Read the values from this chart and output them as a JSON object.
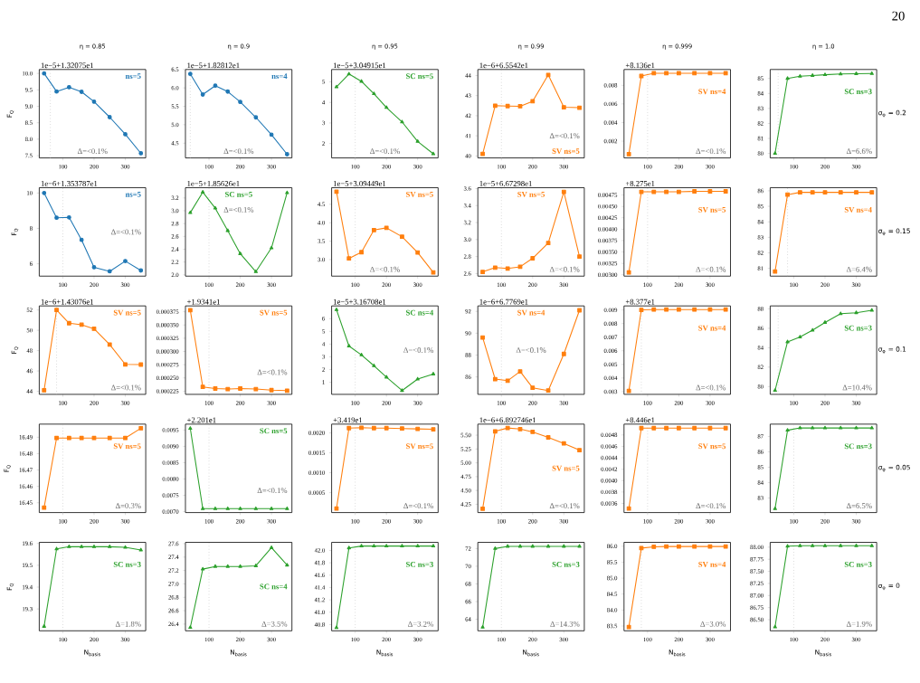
{
  "chart_data": [
    {
      "type": "line",
      "title": "η = 0.85",
      "ylabel": "F$_{Q}$",
      "x": [
        40,
        80,
        120,
        160,
        200,
        250,
        300,
        350
      ],
      "values": [
        10.0,
        9.45,
        9.58,
        9.44,
        9.14,
        8.67,
        8.15,
        7.57
      ],
      "color": "#1f77b4",
      "marker": "circle",
      "xlim": [
        24.5,
        365.5
      ],
      "xticks": [
        100,
        200,
        300
      ],
      "ylim": [
        7.43,
        10.12
      ],
      "yticks": [
        7.5,
        {
          "value": 8,
          "label": "8.0"
        },
        8.5,
        {
          "value": 9,
          "label": "9.0"
        },
        9.5,
        {
          "value": 10,
          "label": "10.0"
        }
      ],
      "ref_lines": [
        {
          "axis": "x",
          "value": 60,
          "color": "#b0b0b0",
          "line_style": "dotted"
        }
      ],
      "annotations": [
        "ns=5",
        "Δ=<0.1%",
        "1e−5+1.32075e1",
        "20"
      ]
    },
    {
      "type": "line",
      "title": "η = 0.9",
      "x": [
        40,
        80,
        120,
        160,
        200,
        250,
        300,
        350
      ],
      "values": [
        6.38,
        5.82,
        6.06,
        5.9,
        5.62,
        5.2,
        4.73,
        4.2
      ],
      "color": "#1f77b4",
      "marker": "circle",
      "xlim": [
        24.5,
        365.5
      ],
      "xticks": [
        100,
        200,
        300
      ],
      "ylim": [
        4.1,
        6.5
      ],
      "yticks": [
        4.5,
        {
          "value": 5,
          "label": "5.0"
        },
        5.5,
        {
          "value": 6,
          "label": "6.0"
        },
        6.5
      ],
      "ref_lines": [
        {
          "axis": "x",
          "value": 40,
          "color": "#b0b0b0",
          "line_style": "dotted"
        }
      ],
      "annotations": [
        "ns=4",
        "Δ=<0.1%",
        "1e−5+1.82812e1"
      ]
    },
    {
      "type": "line",
      "title": "η = 0.95",
      "x": [
        40,
        80,
        120,
        160,
        200,
        250,
        300,
        350
      ],
      "values": [
        4.75,
        5.38,
        5.02,
        4.42,
        3.75,
        3.05,
        2.1,
        1.5
      ],
      "color": "#2ca02c",
      "marker": "triangle",
      "xlim": [
        24.5,
        365.5
      ],
      "xticks": [
        100,
        200,
        300
      ],
      "ylim": [
        1.3,
        5.6
      ],
      "yticks": [
        2,
        3,
        4,
        5
      ],
      "ref_lines": [
        {
          "axis": "x",
          "value": 100,
          "color": "#b0b0b0",
          "line_style": "dotted"
        }
      ],
      "annotations": [
        "SC ns=5",
        "Δ=<0.1%",
        "1e−5+3.04915e1"
      ]
    },
    {
      "type": "line",
      "title": "η = 0.99",
      "x": [
        40,
        80,
        120,
        160,
        200,
        250,
        300,
        350
      ],
      "values": [
        40.1,
        42.5,
        42.48,
        42.47,
        42.72,
        44.03,
        42.42,
        42.4
      ],
      "color": "#ff7f0e",
      "marker": "square",
      "xlim": [
        24.5,
        365.5
      ],
      "xticks": [
        100,
        200,
        300
      ],
      "ylim": [
        39.9,
        44.3
      ],
      "yticks": [
        40,
        41,
        42,
        43,
        44
      ],
      "ref_lines": [
        {
          "axis": "x",
          "value": 100,
          "color": "#b0b0b0",
          "line_style": "dotted"
        }
      ],
      "annotations": [
        "SV ns=5",
        "Δ=<0.1%",
        "1e−6+6.5542e1"
      ]
    },
    {
      "type": "line",
      "title": "η = 0.999",
      "x": [
        40,
        80,
        120,
        160,
        200,
        250,
        300,
        350
      ],
      "values": [
        0.0006,
        0.009,
        0.0093,
        0.0093,
        0.0093,
        0.0093,
        0.0093,
        0.0093
      ],
      "color": "#ff7f0e",
      "marker": "square",
      "xlim": [
        24.5,
        365.5
      ],
      "xticks": [
        100,
        200,
        300
      ],
      "ylim": [
        0.0002,
        0.0097
      ],
      "yticks": [
        0.002,
        0.004,
        0.006,
        0.008
      ],
      "ref_lines": [
        {
          "axis": "x",
          "value": 100,
          "color": "#b0b0b0",
          "line_style": "dotted"
        }
      ],
      "annotations": [
        "SV ns=4",
        "Δ=<0.1%",
        "+8.136e1"
      ]
    },
    {
      "type": "line",
      "title": "η = 1.0",
      "x": [
        40,
        80,
        120,
        160,
        200,
        250,
        300,
        350
      ],
      "values": [
        80.0,
        85.0,
        85.15,
        85.2,
        85.25,
        85.3,
        85.32,
        85.33
      ],
      "color": "#2ca02c",
      "marker": "triangle",
      "xlim": [
        24.5,
        365.5
      ],
      "xticks": [
        100,
        200,
        300
      ],
      "ylim": [
        79.7,
        85.6
      ],
      "yticks": [
        80,
        81,
        82,
        83,
        84,
        85
      ],
      "ref_lines": [
        {
          "axis": "x",
          "value": 50,
          "color": "#b0b0b0",
          "line_style": "dotted"
        }
      ],
      "annotations": [
        "SC ns=3",
        "Δ=6.6%",
        "σ$_{φ}$ = 0.2"
      ]
    },
    {
      "type": "line",
      "ylabel": "F$_{Q}$",
      "x": [
        40,
        80,
        120,
        160,
        200,
        250,
        300,
        350
      ],
      "values": [
        10.0,
        8.6,
        8.62,
        7.35,
        5.8,
        5.57,
        6.15,
        5.62
      ],
      "color": "#1f77b4",
      "marker": "circle",
      "xlim": [
        24.5,
        365.5
      ],
      "xticks": [
        100,
        200,
        300
      ],
      "ylim": [
        5.3,
        10.3
      ],
      "yticks": [
        6,
        8,
        10
      ],
      "ref_lines": [
        {
          "axis": "x",
          "value": 100,
          "color": "#b0b0b0",
          "line_style": "dotted"
        }
      ],
      "annotations": [
        "ns=5",
        "Δ=<0.1%",
        "1e−6+1.353787e1"
      ]
    },
    {
      "type": "line",
      "x": [
        40,
        80,
        120,
        160,
        200,
        250,
        300,
        350
      ],
      "values": [
        2.97,
        3.29,
        3.04,
        2.69,
        2.33,
        2.05,
        2.42,
        3.28
      ],
      "color": "#2ca02c",
      "marker": "triangle",
      "xlim": [
        24.5,
        365.5
      ],
      "xticks": [
        100,
        200,
        300
      ],
      "ylim": [
        1.98,
        3.36
      ],
      "yticks": [
        {
          "value": 2,
          "label": "2.0"
        },
        2.2,
        2.4,
        2.6,
        2.8,
        {
          "value": 3,
          "label": "3.0"
        },
        3.2
      ],
      "ref_lines": [
        {
          "axis": "x",
          "value": 100,
          "color": "#b0b0b0",
          "line_style": "dotted"
        }
      ],
      "annotations": [
        "SC ns=5",
        "Δ=<0.1%",
        "1e−5+1.85626e1"
      ]
    },
    {
      "type": "line",
      "x": [
        40,
        80,
        120,
        160,
        200,
        250,
        300,
        350
      ],
      "values": [
        4.84,
        3.03,
        3.2,
        3.8,
        3.86,
        3.62,
        3.19,
        2.65
      ],
      "color": "#ff7f0e",
      "marker": "square",
      "xlim": [
        24.5,
        365.5
      ],
      "xticks": [
        100,
        200,
        300
      ],
      "ylim": [
        2.55,
        4.95
      ],
      "yticks": [
        {
          "value": 3,
          "label": "3.0"
        },
        3.5,
        {
          "value": 4,
          "label": "4.0"
        },
        4.5
      ],
      "ref_lines": [
        {
          "axis": "x",
          "value": 100,
          "color": "#b0b0b0",
          "line_style": "dotted"
        }
      ],
      "annotations": [
        "SV ns=5",
        "Δ=<0.1%",
        "1e−5+3.09449e1"
      ]
    },
    {
      "type": "line",
      "x": [
        40,
        80,
        120,
        160,
        200,
        250,
        300,
        350
      ],
      "values": [
        2.62,
        2.67,
        2.66,
        2.68,
        2.78,
        2.96,
        3.56,
        2.8
      ],
      "color": "#ff7f0e",
      "marker": "square",
      "xlim": [
        24.5,
        365.5
      ],
      "xticks": [
        100,
        200,
        300
      ],
      "ylim": [
        2.57,
        3.61
      ],
      "yticks": [
        2.6,
        2.8,
        {
          "value": 3,
          "label": "3.0"
        },
        3.2,
        3.4,
        3.6
      ],
      "ref_lines": [
        {
          "axis": "x",
          "value": 100,
          "color": "#b0b0b0",
          "line_style": "dotted"
        }
      ],
      "annotations": [
        "SV ns=5",
        "Δ=<0.1%",
        "1e−5+6.67298e1"
      ]
    },
    {
      "type": "line",
      "x": [
        40,
        80,
        120,
        160,
        200,
        250,
        300,
        350
      ],
      "values": [
        0.00305,
        0.00482,
        0.00482,
        0.00482,
        0.00482,
        0.00483,
        0.00483,
        0.00483
      ],
      "color": "#ff7f0e",
      "marker": "square",
      "xlim": [
        24.5,
        365.5
      ],
      "xticks": [
        100,
        200,
        300
      ],
      "ylim": [
        0.00297,
        0.00491
      ],
      "yticks": [
        {
          "value": 0.003,
          "label": "0.00300"
        },
        {
          "value": 0.00325,
          "label": "0.00325"
        },
        {
          "value": 0.0035,
          "label": "0.00350"
        },
        {
          "value": 0.00375,
          "label": "0.00375"
        },
        {
          "value": 0.004,
          "label": "0.00400"
        },
        {
          "value": 0.00425,
          "label": "0.00425"
        },
        {
          "value": 0.0045,
          "label": "0.00450"
        },
        {
          "value": 0.00475,
          "label": "0.00475"
        }
      ],
      "ref_lines": [
        {
          "axis": "x",
          "value": 100,
          "color": "#b0b0b0",
          "line_style": "dotted"
        }
      ],
      "annotations": [
        "SV ns=5",
        "Δ=<0.1%",
        "+8.275e1"
      ]
    },
    {
      "type": "line",
      "x": [
        40,
        80,
        120,
        160,
        200,
        250,
        300,
        350
      ],
      "values": [
        80.8,
        85.75,
        85.9,
        85.9,
        85.9,
        85.9,
        85.9,
        85.9
      ],
      "color": "#ff7f0e",
      "marker": "square",
      "xlim": [
        24.5,
        365.5
      ],
      "xticks": [
        100,
        200,
        300
      ],
      "ylim": [
        80.5,
        86.2
      ],
      "yticks": [
        81,
        82,
        83,
        84,
        85,
        86
      ],
      "ref_lines": [
        {
          "axis": "x",
          "value": 80,
          "color": "#b0b0b0",
          "line_style": "dotted"
        }
      ],
      "annotations": [
        "SV ns=4",
        "Δ=6.4%",
        "σ$_{φ}$ = 0.15"
      ]
    },
    {
      "type": "line",
      "ylabel": "F$_{Q}$",
      "x": [
        40,
        80,
        120,
        160,
        200,
        250,
        300,
        350
      ],
      "values": [
        44.1,
        52.0,
        50.7,
        50.55,
        50.15,
        48.6,
        46.65,
        46.63
      ],
      "color": "#ff7f0e",
      "marker": "square",
      "xlim": [
        24.5,
        365.5
      ],
      "xticks": [
        100,
        200,
        300
      ],
      "ylim": [
        43.7,
        52.4
      ],
      "yticks": [
        44,
        46,
        48,
        50,
        52
      ],
      "ref_lines": [
        {
          "axis": "x",
          "value": 80,
          "color": "#b0b0b0",
          "line_style": "dotted"
        }
      ],
      "annotations": [
        "SV ns=5",
        "Δ=<0.1%",
        "1e−6+1.43076e1"
      ]
    },
    {
      "type": "line",
      "x": [
        40,
        80,
        120,
        160,
        200,
        250,
        300,
        350
      ],
      "values": [
        0.000378,
        0.000233,
        0.00023,
        0.000229,
        0.00023,
        0.000229,
        0.000227,
        0.000226
      ],
      "color": "#ff7f0e",
      "marker": "square",
      "xlim": [
        24.5,
        365.5
      ],
      "xticks": [
        100,
        200,
        300
      ],
      "ylim": [
        0.000219,
        0.000386
      ],
      "yticks": [
        {
          "value": 0.000225,
          "label": "0.000225"
        },
        {
          "value": 0.00025,
          "label": "0.000250"
        },
        {
          "value": 0.000275,
          "label": "0.000275"
        },
        {
          "value": 0.0003,
          "label": "0.000300"
        },
        {
          "value": 0.000325,
          "label": "0.000325"
        },
        {
          "value": 0.00035,
          "label": "0.000350"
        },
        {
          "value": 0.000375,
          "label": "0.000375"
        }
      ],
      "ref_lines": [
        {
          "axis": "x",
          "value": 100,
          "color": "#b0b0b0",
          "line_style": "dotted"
        }
      ],
      "annotations": [
        "SV ns=5",
        "Δ=<0.1%",
        "+1.9341e1"
      ]
    },
    {
      "type": "line",
      "x": [
        40,
        80,
        120,
        160,
        200,
        250,
        300,
        350
      ],
      "values": [
        6.7,
        3.85,
        3.15,
        2.3,
        1.4,
        0.35,
        1.25,
        1.65
      ],
      "color": "#2ca02c",
      "marker": "triangle",
      "xlim": [
        24.5,
        365.5
      ],
      "xticks": [
        100,
        200,
        300
      ],
      "ylim": [
        0.05,
        7.0
      ],
      "yticks": [
        1,
        2,
        3,
        4,
        5,
        6
      ],
      "ref_lines": [
        {
          "axis": "x",
          "value": 100,
          "color": "#b0b0b0",
          "line_style": "dotted"
        }
      ],
      "annotations": [
        "SC ns=4",
        "Δ=<0.1%",
        "1e−5+3.16708e1"
      ]
    },
    {
      "type": "line",
      "x": [
        40,
        80,
        120,
        160,
        200,
        250,
        300,
        350
      ],
      "values": [
        89.6,
        85.8,
        85.65,
        86.5,
        85.0,
        84.75,
        88.1,
        92.1
      ],
      "color": "#ff7f0e",
      "marker": "square",
      "xlim": [
        24.5,
        365.5
      ],
      "xticks": [
        100,
        200,
        300
      ],
      "ylim": [
        84.4,
        92.5
      ],
      "yticks": [
        86,
        88,
        90,
        92
      ],
      "ref_lines": [
        {
          "axis": "x",
          "value": 100,
          "color": "#b0b0b0",
          "line_style": "dotted"
        }
      ],
      "annotations": [
        "SV ns=4",
        "Δ=<0.1%",
        "1e−6+6.7769e1"
      ]
    },
    {
      "type": "line",
      "x": [
        40,
        80,
        120,
        160,
        200,
        250,
        300,
        350
      ],
      "values": [
        0.00305,
        0.00901,
        0.00903,
        0.00903,
        0.00903,
        0.00903,
        0.00903,
        0.00903
      ],
      "color": "#ff7f0e",
      "marker": "square",
      "xlim": [
        24.5,
        365.5
      ],
      "xticks": [
        100,
        200,
        300
      ],
      "ylim": [
        0.0028,
        0.0093
      ],
      "yticks": [
        0.003,
        0.004,
        0.005,
        0.006,
        0.007,
        0.008,
        0.009
      ],
      "ref_lines": [
        {
          "axis": "x",
          "value": 80,
          "color": "#b0b0b0",
          "line_style": "dotted"
        }
      ],
      "annotations": [
        "SV ns=4",
        "Δ=<0.1%",
        "+8.377e1"
      ]
    },
    {
      "type": "line",
      "x": [
        40,
        80,
        120,
        160,
        200,
        250,
        300,
        350
      ],
      "values": [
        79.6,
        84.6,
        85.1,
        85.8,
        86.6,
        87.5,
        87.6,
        87.85
      ],
      "color": "#2ca02c",
      "marker": "triangle",
      "xlim": [
        24.5,
        365.5
      ],
      "xticks": [
        100,
        200,
        300
      ],
      "ylim": [
        79.2,
        88.3
      ],
      "yticks": [
        80,
        82,
        84,
        86,
        88
      ],
      "ref_lines": [
        {
          "axis": "x",
          "value": 50,
          "color": "#b0b0b0",
          "line_style": "dotted"
        }
      ],
      "annotations": [
        "SC ns=3",
        "Δ=10.4%",
        "σ$_{φ}$ = 0.1"
      ]
    },
    {
      "type": "line",
      "ylabel": "F$_{Q}$",
      "x": [
        40,
        80,
        120,
        160,
        200,
        250,
        300,
        350
      ],
      "values": [
        16.447,
        16.4895,
        16.4895,
        16.4895,
        16.4895,
        16.4895,
        16.4895,
        16.4955
      ],
      "color": "#ff7f0e",
      "marker": "square",
      "xlim": [
        24.5,
        365.5
      ],
      "xticks": [
        100,
        200,
        300
      ],
      "ylim": [
        16.444,
        16.498
      ],
      "yticks": [
        16.45,
        16.46,
        16.47,
        16.48,
        16.49
      ],
      "ref_lines": [
        {
          "axis": "x",
          "value": 100,
          "color": "#b0b0b0",
          "line_style": "dotted"
        }
      ],
      "annotations": [
        "SV ns=5",
        "Δ=0.3%"
      ]
    },
    {
      "type": "line",
      "x": [
        40,
        80,
        120,
        160,
        200,
        250,
        300,
        350
      ],
      "values": [
        0.00955,
        0.00709,
        0.00709,
        0.00709,
        0.00709,
        0.00709,
        0.00709,
        0.00709
      ],
      "color": "#2ca02c",
      "marker": "triangle",
      "xlim": [
        24.5,
        365.5
      ],
      "xticks": [
        100,
        200,
        300
      ],
      "ylim": [
        0.00697,
        0.00968
      ],
      "yticks": [
        {
          "value": 0.007,
          "label": "0.0070"
        },
        {
          "value": 0.0075,
          "label": "0.0075"
        },
        {
          "value": 0.008,
          "label": "0.0080"
        },
        {
          "value": 0.0085,
          "label": "0.0085"
        },
        {
          "value": 0.009,
          "label": "0.0090"
        },
        {
          "value": 0.0095,
          "label": "0.0095"
        }
      ],
      "ref_lines": [
        {
          "axis": "x",
          "value": 100,
          "color": "#b0b0b0",
          "line_style": "dotted"
        }
      ],
      "annotations": [
        "SC ns=5",
        "Δ=<0.1%",
        "+2.201e1"
      ]
    },
    {
      "type": "line",
      "x": [
        40,
        80,
        120,
        160,
        200,
        250,
        300,
        350
      ],
      "values": [
        0.0001,
        0.00212,
        0.00213,
        0.00212,
        0.00212,
        0.00211,
        0.0021,
        0.00209
      ],
      "color": "#ff7f0e",
      "marker": "square",
      "xlim": [
        24.5,
        365.5
      ],
      "xticks": [
        100,
        200,
        300
      ],
      "ylim": [
        0.0,
        0.00222
      ],
      "yticks": [
        {
          "value": 0.0005,
          "label": "0.0005"
        },
        {
          "value": 0.001,
          "label": "0.0010"
        },
        {
          "value": 0.0015,
          "label": "0.0015"
        },
        {
          "value": 0.002,
          "label": "0.0020"
        }
      ],
      "ref_lines": [
        {
          "axis": "x",
          "value": 100,
          "color": "#b0b0b0",
          "line_style": "dotted"
        }
      ],
      "annotations": [
        "SV ns=5",
        "Δ=<0.1%",
        "+3.419e1"
      ]
    },
    {
      "type": "line",
      "x": [
        40,
        80,
        120,
        160,
        200,
        250,
        300,
        350
      ],
      "values": [
        4.17,
        5.57,
        5.63,
        5.61,
        5.56,
        5.46,
        5.35,
        5.23
      ],
      "color": "#ff7f0e",
      "marker": "square",
      "xlim": [
        24.5,
        365.5
      ],
      "xticks": [
        100,
        200,
        300
      ],
      "ylim": [
        4.1,
        5.7
      ],
      "yticks": [
        {
          "value": 4.25,
          "label": "4.25"
        },
        {
          "value": 4.5,
          "label": "4.50"
        },
        {
          "value": 4.75,
          "label": "4.75"
        },
        {
          "value": 5.0,
          "label": "5.00"
        },
        {
          "value": 5.25,
          "label": "5.25"
        },
        {
          "value": 5.5,
          "label": "5.50"
        }
      ],
      "ref_lines": [
        {
          "axis": "x",
          "value": 100,
          "color": "#b0b0b0",
          "line_style": "dotted"
        }
      ],
      "annotations": [
        "SV ns=5",
        "Δ=<0.1%",
        "1e−6+6.892746e1"
      ]
    },
    {
      "type": "line",
      "x": [
        40,
        80,
        120,
        160,
        200,
        250,
        300,
        350
      ],
      "values": [
        0.00351,
        0.00492,
        0.00492,
        0.00492,
        0.00492,
        0.00492,
        0.00492,
        0.00492
      ],
      "color": "#ff7f0e",
      "marker": "square",
      "xlim": [
        24.5,
        365.5
      ],
      "xticks": [
        100,
        200,
        300
      ],
      "ylim": [
        0.00344,
        0.00499
      ],
      "yticks": [
        {
          "value": 0.0036,
          "label": "0.0036"
        },
        {
          "value": 0.0038,
          "label": "0.0038"
        },
        {
          "value": 0.004,
          "label": "0.0040"
        },
        {
          "value": 0.0042,
          "label": "0.0042"
        },
        {
          "value": 0.0044,
          "label": "0.0044"
        },
        {
          "value": 0.0046,
          "label": "0.0046"
        },
        {
          "value": 0.0048,
          "label": "0.0048"
        }
      ],
      "ref_lines": [
        {
          "axis": "x",
          "value": 100,
          "color": "#b0b0b0",
          "line_style": "dotted"
        }
      ],
      "annotations": [
        "SV ns=5",
        "Δ=<0.1%",
        "+8.446e1"
      ]
    },
    {
      "type": "line",
      "x": [
        40,
        80,
        120,
        160,
        200,
        250,
        300,
        350
      ],
      "values": [
        82.3,
        87.4,
        87.55,
        87.55,
        87.55,
        87.55,
        87.55,
        87.55
      ],
      "color": "#2ca02c",
      "marker": "triangle",
      "xlim": [
        24.5,
        365.5
      ],
      "xticks": [
        100,
        200,
        300
      ],
      "ylim": [
        82.05,
        87.8
      ],
      "yticks": [
        83,
        84,
        85,
        86,
        87
      ],
      "ref_lines": [
        {
          "axis": "x",
          "value": 100,
          "color": "#b0b0b0",
          "line_style": "dotted"
        }
      ],
      "annotations": [
        "SC ns=3",
        "Δ=6.5%",
        "σ$_{φ}$ = 0.05"
      ]
    },
    {
      "type": "line",
      "ylabel": "F$_{Q}$",
      "xlabel": "N$_{basis}$",
      "x": [
        40,
        80,
        120,
        160,
        200,
        250,
        300,
        350
      ],
      "values": [
        19.22,
        19.575,
        19.585,
        19.585,
        19.585,
        19.585,
        19.582,
        19.57
      ],
      "color": "#2ca02c",
      "marker": "triangle",
      "xlim": [
        24.5,
        365.5
      ],
      "xticks": [
        100,
        200,
        300
      ],
      "ylim": [
        19.2,
        19.605
      ],
      "yticks": [
        19.3,
        19.4,
        19.5,
        19.6
      ],
      "ref_lines": [
        {
          "axis": "x",
          "value": 100,
          "color": "#b0b0b0",
          "line_style": "dotted"
        }
      ],
      "annotations": [
        "SC ns=3",
        "Δ=1.8%"
      ]
    },
    {
      "type": "line",
      "xlabel": "N$_{basis}$",
      "x": [
        40,
        80,
        120,
        160,
        200,
        250,
        300,
        350
      ],
      "values": [
        26.35,
        27.22,
        27.26,
        27.26,
        27.26,
        27.27,
        27.54,
        27.28
      ],
      "color": "#2ca02c",
      "marker": "triangle",
      "xlim": [
        24.5,
        365.5
      ],
      "xticks": [
        100,
        200,
        300
      ],
      "ylim": [
        26.3,
        27.62
      ],
      "yticks": [
        26.4,
        26.6,
        26.8,
        {
          "value": 27,
          "label": "27.0"
        },
        27.2,
        27.4,
        27.6
      ],
      "ref_lines": [
        {
          "axis": "x",
          "value": 100,
          "color": "#b0b0b0",
          "line_style": "dotted"
        }
      ],
      "annotations": [
        "SC ns=4",
        "Δ=3.5%"
      ]
    },
    {
      "type": "line",
      "xlabel": "N$_{basis}$",
      "x": [
        40,
        80,
        120,
        160,
        200,
        250,
        300,
        350
      ],
      "values": [
        40.75,
        42.04,
        42.07,
        42.07,
        42.07,
        42.07,
        42.07,
        42.07
      ],
      "color": "#2ca02c",
      "marker": "triangle",
      "xlim": [
        24.5,
        365.5
      ],
      "xticks": [
        100,
        200,
        300
      ],
      "ylim": [
        40.7,
        42.13
      ],
      "yticks": [
        40.8,
        {
          "value": 41,
          "label": "41.0"
        },
        41.2,
        41.4,
        41.6,
        41.8,
        {
          "value": 42,
          "label": "42.0"
        }
      ],
      "ref_lines": [
        {
          "axis": "x",
          "value": 100,
          "color": "#b0b0b0",
          "line_style": "dotted"
        }
      ],
      "annotations": [
        "SC ns=3",
        "Δ=3.2%"
      ]
    },
    {
      "type": "line",
      "xlabel": "N$_{basis}$",
      "x": [
        40,
        80,
        120,
        160,
        200,
        250,
        300,
        350
      ],
      "values": [
        63.1,
        72.0,
        72.25,
        72.25,
        72.25,
        72.25,
        72.25,
        72.25
      ],
      "color": "#2ca02c",
      "marker": "triangle",
      "xlim": [
        24.5,
        365.5
      ],
      "xticks": [
        100,
        200,
        300
      ],
      "ylim": [
        62.7,
        72.7
      ],
      "yticks": [
        64,
        66,
        68,
        70,
        72
      ],
      "ref_lines": [
        {
          "axis": "x",
          "value": 100,
          "color": "#b0b0b0",
          "line_style": "dotted"
        }
      ],
      "annotations": [
        "SC ns=3",
        "Δ=14.3%"
      ]
    },
    {
      "type": "line",
      "xlabel": "N$_{basis}$",
      "x": [
        40,
        80,
        120,
        160,
        200,
        250,
        300,
        350
      ],
      "values": [
        83.47,
        85.94,
        85.98,
        85.99,
        85.99,
        85.99,
        85.99,
        85.99
      ],
      "color": "#ff7f0e",
      "marker": "square",
      "xlim": [
        24.5,
        365.5
      ],
      "xticks": [
        100,
        200,
        300
      ],
      "ylim": [
        83.35,
        86.12
      ],
      "yticks": [
        83.5,
        {
          "value": 84,
          "label": "84.0"
        },
        84.5,
        {
          "value": 85,
          "label": "85.0"
        },
        85.5,
        {
          "value": 86,
          "label": "86.0"
        }
      ],
      "ref_lines": [
        {
          "axis": "x",
          "value": 80,
          "color": "#b0b0b0",
          "line_style": "dotted"
        }
      ],
      "annotations": [
        "SV ns=4",
        "Δ=3.0%"
      ]
    },
    {
      "type": "line",
      "xlabel": "N$_{basis}$",
      "x": [
        40,
        80,
        120,
        160,
        200,
        250,
        300,
        350
      ],
      "values": [
        86.35,
        88.02,
        88.03,
        88.03,
        88.03,
        88.03,
        88.03,
        88.03
      ],
      "color": "#2ca02c",
      "marker": "triangle",
      "xlim": [
        24.5,
        365.5
      ],
      "xticks": [
        100,
        200,
        300
      ],
      "ylim": [
        86.27,
        88.1
      ],
      "yticks": [
        {
          "value": 86.5,
          "label": "86.50"
        },
        {
          "value": 86.75,
          "label": "86.75"
        },
        {
          "value": 87.0,
          "label": "87.00"
        },
        {
          "value": 87.25,
          "label": "87.25"
        },
        {
          "value": 87.5,
          "label": "87.50"
        },
        {
          "value": 87.75,
          "label": "87.75"
        },
        {
          "value": 88.0,
          "label": "88.00"
        }
      ],
      "ref_lines": [
        {
          "axis": "x",
          "value": 100,
          "color": "#b0b0b0",
          "line_style": "dotted"
        }
      ],
      "annotations": [
        "SC ns=3",
        "Δ=1.9%",
        "σ$_{φ}$ = 0"
      ]
    }
  ]
}
